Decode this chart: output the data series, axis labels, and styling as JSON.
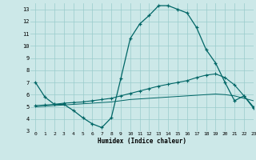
{
  "xlabel": "Humidex (Indice chaleur)",
  "xlim": [
    -0.5,
    23
  ],
  "ylim": [
    3,
    13.5
  ],
  "yticks": [
    3,
    4,
    5,
    6,
    7,
    8,
    9,
    10,
    11,
    12,
    13
  ],
  "xticks": [
    0,
    1,
    2,
    3,
    4,
    5,
    6,
    7,
    8,
    9,
    10,
    11,
    12,
    13,
    14,
    15,
    16,
    17,
    18,
    19,
    20,
    21,
    22,
    23
  ],
  "background_color": "#cce8e8",
  "line_color": "#006666",
  "grid_color": "#99cccc",
  "line1_x": [
    0,
    1,
    2,
    3,
    4,
    5,
    6,
    7,
    8,
    9,
    10,
    11,
    12,
    13,
    14,
    15,
    16,
    17,
    18,
    19,
    20,
    21,
    22,
    23
  ],
  "line1_y": [
    7.0,
    5.8,
    5.2,
    5.2,
    4.7,
    4.1,
    3.6,
    3.3,
    4.1,
    7.3,
    10.6,
    11.8,
    12.5,
    13.3,
    13.3,
    13.0,
    12.7,
    11.5,
    9.7,
    8.6,
    7.0,
    5.5,
    5.9,
    4.9
  ],
  "line2_x": [
    0,
    1,
    2,
    3,
    4,
    5,
    6,
    7,
    8,
    9,
    10,
    11,
    12,
    13,
    14,
    15,
    16,
    17,
    18,
    19,
    20,
    21,
    22,
    23
  ],
  "line2_y": [
    5.1,
    5.15,
    5.2,
    5.3,
    5.35,
    5.4,
    5.5,
    5.6,
    5.7,
    5.9,
    6.1,
    6.3,
    6.5,
    6.7,
    6.85,
    7.0,
    7.15,
    7.4,
    7.6,
    7.7,
    7.4,
    6.8,
    5.9,
    5.0
  ],
  "line3_x": [
    0,
    1,
    2,
    3,
    4,
    5,
    6,
    7,
    8,
    9,
    10,
    11,
    12,
    13,
    14,
    15,
    16,
    17,
    18,
    19,
    20,
    21,
    22,
    23
  ],
  "line3_y": [
    5.0,
    5.05,
    5.1,
    5.15,
    5.2,
    5.25,
    5.3,
    5.35,
    5.4,
    5.5,
    5.6,
    5.65,
    5.7,
    5.75,
    5.8,
    5.85,
    5.9,
    5.95,
    6.0,
    6.05,
    6.0,
    5.9,
    5.7,
    5.5
  ]
}
